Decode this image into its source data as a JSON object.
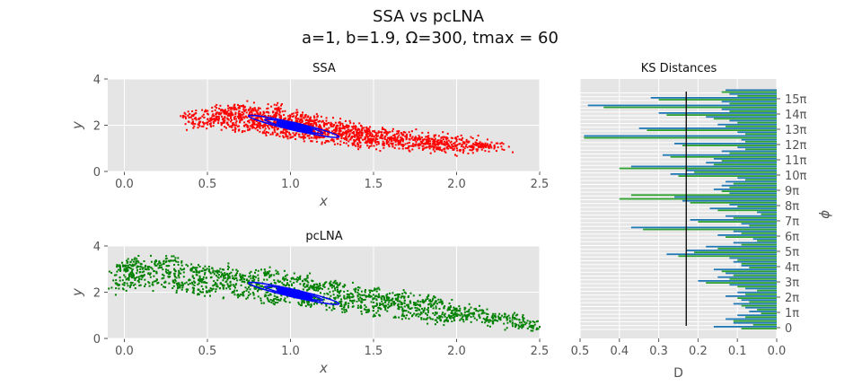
{
  "title": "SSA vs pcLNA",
  "subtitle": "a=1, b=1.9, Ω=300, tmax = 60",
  "colors": {
    "plot_bg": "#e5e5e5",
    "grid": "#ffffff",
    "ssa_points": "#ff0000",
    "pclna_points": "#008000",
    "contour": "#0000ff",
    "ks_bar_a": "#1f77b4",
    "ks_bar_b": "#2ca02c",
    "ks_line": "#000000"
  },
  "chart_data": [
    {
      "type": "scatter",
      "id": "ssa",
      "title": "SSA",
      "xlabel": "x",
      "ylabel": "y",
      "xlim": [
        -0.1,
        2.5
      ],
      "ylim": [
        0,
        4
      ],
      "xticks": [
        "0.0",
        "0.5",
        "1.0",
        "1.5",
        "2.0",
        "2.5"
      ],
      "yticks": [
        "0",
        "2",
        "4"
      ],
      "grid": true,
      "series": [
        {
          "kind": "cloud",
          "color": "#ff0000",
          "points": [
            [
              0.4,
              2.35
            ],
            [
              0.45,
              2.1
            ],
            [
              0.5,
              2.5
            ],
            [
              0.55,
              2.2
            ],
            [
              0.6,
              2.6
            ],
            [
              0.62,
              2.3
            ],
            [
              0.65,
              2.0
            ],
            [
              0.7,
              2.45
            ],
            [
              0.72,
              2.75
            ],
            [
              0.75,
              2.2
            ],
            [
              0.78,
              1.9
            ],
            [
              0.8,
              2.55
            ],
            [
              0.83,
              2.25
            ],
            [
              0.85,
              1.85
            ],
            [
              0.88,
              2.4
            ],
            [
              0.9,
              2.1
            ],
            [
              0.92,
              2.65
            ],
            [
              0.95,
              1.7
            ],
            [
              0.98,
              2.2
            ],
            [
              1.0,
              1.95
            ],
            [
              1.02,
              2.4
            ],
            [
              1.05,
              1.6
            ],
            [
              1.08,
              2.05
            ],
            [
              1.1,
              1.8
            ],
            [
              1.12,
              2.25
            ],
            [
              1.15,
              1.5
            ],
            [
              1.18,
              1.95
            ],
            [
              1.2,
              1.7
            ],
            [
              1.23,
              2.1
            ],
            [
              1.25,
              1.4
            ],
            [
              1.28,
              1.85
            ],
            [
              1.3,
              1.6
            ],
            [
              1.33,
              1.95
            ],
            [
              1.35,
              1.3
            ],
            [
              1.38,
              1.7
            ],
            [
              1.4,
              1.5
            ],
            [
              1.43,
              1.8
            ],
            [
              1.45,
              1.25
            ],
            [
              1.48,
              1.6
            ],
            [
              1.5,
              1.4
            ],
            [
              1.55,
              1.7
            ],
            [
              1.58,
              1.2
            ],
            [
              1.6,
              1.45
            ],
            [
              1.65,
              1.3
            ],
            [
              1.7,
              1.55
            ],
            [
              1.72,
              1.1
            ],
            [
              1.75,
              1.35
            ],
            [
              1.8,
              1.2
            ],
            [
              1.85,
              1.4
            ],
            [
              1.88,
              1.05
            ],
            [
              1.9,
              1.25
            ],
            [
              1.95,
              1.1
            ],
            [
              2.0,
              1.3
            ],
            [
              2.05,
              1.0
            ],
            [
              2.1,
              1.2
            ],
            [
              2.15,
              1.05
            ],
            [
              2.2,
              1.1
            ]
          ]
        },
        {
          "kind": "contours",
          "color": "#0000ff",
          "center": [
            1.02,
            1.95
          ],
          "ellipses": [
            [
              0.28,
              0.16
            ],
            [
              0.18,
              0.11
            ],
            [
              0.09,
              0.06
            ]
          ]
        }
      ]
    },
    {
      "type": "scatter",
      "id": "pclna",
      "title": "pcLNA",
      "xlabel": "x",
      "ylabel": "y",
      "xlim": [
        -0.1,
        2.5
      ],
      "ylim": [
        0,
        4
      ],
      "xticks": [
        "0.0",
        "0.5",
        "1.0",
        "1.5",
        "2.0",
        "2.5"
      ],
      "yticks": [
        "0",
        "2",
        "4"
      ],
      "grid": true,
      "series": [
        {
          "kind": "cloud",
          "color": "#008000",
          "points": [
            [
              0.0,
              2.3
            ],
            [
              0.0,
              3.0
            ],
            [
              0.02,
              2.6
            ],
            [
              0.05,
              3.2
            ],
            [
              0.1,
              2.7
            ],
            [
              0.15,
              3.1
            ],
            [
              0.2,
              2.4
            ],
            [
              0.25,
              3.3
            ],
            [
              0.3,
              2.8
            ],
            [
              0.35,
              2.2
            ],
            [
              0.4,
              3.0
            ],
            [
              0.45,
              2.5
            ],
            [
              0.5,
              2.0
            ],
            [
              0.55,
              2.9
            ],
            [
              0.6,
              2.3
            ],
            [
              0.65,
              2.7
            ],
            [
              0.7,
              1.9
            ],
            [
              0.75,
              2.5
            ],
            [
              0.8,
              2.2
            ],
            [
              0.85,
              2.8
            ],
            [
              0.9,
              1.7
            ],
            [
              0.95,
              2.4
            ],
            [
              1.0,
              2.0
            ],
            [
              1.05,
              2.6
            ],
            [
              1.1,
              1.6
            ],
            [
              1.15,
              2.2
            ],
            [
              1.2,
              1.8
            ],
            [
              1.25,
              2.3
            ],
            [
              1.3,
              1.4
            ],
            [
              1.35,
              1.9
            ],
            [
              1.4,
              1.6
            ],
            [
              1.45,
              2.0
            ],
            [
              1.5,
              1.2
            ],
            [
              1.55,
              1.7
            ],
            [
              1.6,
              1.4
            ],
            [
              1.65,
              1.8
            ],
            [
              1.7,
              1.0
            ],
            [
              1.75,
              1.5
            ],
            [
              1.8,
              1.2
            ],
            [
              1.85,
              1.6
            ],
            [
              1.9,
              0.9
            ],
            [
              1.95,
              1.3
            ],
            [
              2.0,
              1.0
            ],
            [
              2.1,
              1.1
            ],
            [
              2.2,
              0.8
            ],
            [
              2.3,
              0.9
            ],
            [
              2.4,
              0.6
            ],
            [
              2.5,
              0.5
            ]
          ]
        },
        {
          "kind": "contours",
          "color": "#0000ff",
          "center": [
            1.02,
            1.95
          ],
          "ellipses": [
            [
              0.28,
              0.16
            ],
            [
              0.18,
              0.11
            ],
            [
              0.09,
              0.06
            ]
          ]
        }
      ]
    },
    {
      "type": "bar",
      "orientation": "horizontal",
      "id": "ks",
      "title": "KS Distances",
      "xlabel": "D",
      "ylabel": "ϕ",
      "xlim": [
        0.5,
        0.0
      ],
      "xticks": [
        "0.5",
        "0.4",
        "0.3",
        "0.2",
        "0.1",
        "0.0"
      ],
      "ytick_labels": [
        "0",
        "1π",
        "2π",
        "3π",
        "4π",
        "5π",
        "6π",
        "7π",
        "8π",
        "9π",
        "10π",
        "11π",
        "12π",
        "13π",
        "14π",
        "15π"
      ],
      "reference_line": 0.23,
      "series": [
        {
          "name": "",
          "color": "#1f77b4",
          "values": [
            0.16,
            0.11,
            0.13,
            0.1,
            0.07,
            0.08,
            0.11,
            0.09,
            0.13,
            0.1,
            0.08,
            0.12,
            0.2,
            0.15,
            0.13,
            0.16,
            0.09,
            0.11,
            0.12,
            0.28,
            0.23,
            0.18,
            0.11,
            0.06,
            0.15,
            0.11,
            0.37,
            0.09,
            0.22,
            0.13,
            0.05,
            0.17,
            0.12,
            0.24,
            0.26,
            0.12,
            0.16,
            0.14,
            0.13,
            0.1,
            0.27,
            0.23,
            0.37,
            0.18,
            0.16,
            0.29,
            0.14,
            0.1,
            0.26,
            0.09,
            0.49,
            0.1,
            0.35,
            0.15,
            0.12,
            0.18,
            0.3,
            0.14,
            0.48,
            0.14,
            0.32,
            0.12,
            0.13
          ]
        },
        {
          "name": "",
          "color": "#2ca02c",
          "values": [
            0.09,
            0.06,
            0.11,
            0.08,
            0.04,
            0.05,
            0.09,
            0.07,
            0.1,
            0.08,
            0.05,
            0.1,
            0.18,
            0.12,
            0.11,
            0.14,
            0.07,
            0.09,
            0.1,
            0.25,
            0.21,
            0.15,
            0.09,
            0.05,
            0.13,
            0.09,
            0.34,
            0.07,
            0.2,
            0.11,
            0.04,
            0.15,
            0.1,
            0.22,
            0.4,
            0.37,
            0.14,
            0.12,
            0.11,
            0.08,
            0.25,
            0.21,
            0.4,
            0.16,
            0.14,
            0.27,
            0.12,
            0.08,
            0.24,
            0.08,
            0.49,
            0.08,
            0.33,
            0.13,
            0.1,
            0.16,
            0.28,
            0.12,
            0.44,
            0.12,
            0.3,
            0.1,
            0.14
          ]
        }
      ]
    }
  ]
}
